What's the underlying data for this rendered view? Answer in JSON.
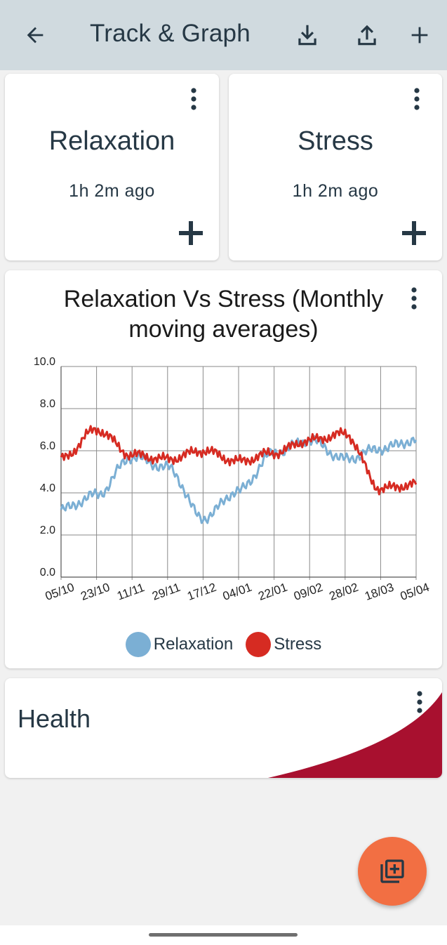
{
  "app_bar": {
    "title": "Track & Graph",
    "icons": [
      "back-arrow-icon",
      "download-icon",
      "upload-icon",
      "plus-icon"
    ]
  },
  "trackers": [
    {
      "name": "Relaxation",
      "last_tracked": "1h 2m ago"
    },
    {
      "name": "Stress",
      "last_tracked": "1h 2m ago"
    }
  ],
  "graph": {
    "title": "Relaxation Vs Stress (Monthly moving averages)",
    "legend": [
      {
        "label": "Relaxation",
        "color": "#7bafd4"
      },
      {
        "label": "Stress",
        "color": "#d62b22"
      }
    ]
  },
  "group": {
    "title": "Health",
    "accent_color": "#a8102f"
  },
  "colors": {
    "app_bar": "#d0dadf",
    "fab": "#f26f43",
    "text": "#263845"
  },
  "chart_data": {
    "type": "line",
    "x": [
      "05/10",
      "23/10",
      "11/11",
      "29/11",
      "17/12",
      "04/01",
      "22/01",
      "09/02",
      "28/02",
      "18/03",
      "05/04"
    ],
    "ylim": [
      0,
      10
    ],
    "y_ticks": [
      "0.0",
      "2.0",
      "4.0",
      "6.0",
      "8.0",
      "10.0"
    ],
    "grid": true,
    "legend_position": "bottom",
    "series": [
      {
        "name": "Relaxation",
        "color": "#7bafd4",
        "values": [
          3.2,
          3.9,
          5.7,
          5.2,
          2.8,
          4.1,
          5.9,
          6.5,
          5.6,
          6.1,
          6.5
        ]
      },
      {
        "name": "Stress",
        "color": "#d62b22",
        "values": [
          5.6,
          7.0,
          5.8,
          5.6,
          6.0,
          5.5,
          5.9,
          6.5,
          6.8,
          4.2,
          4.4
        ]
      }
    ]
  }
}
